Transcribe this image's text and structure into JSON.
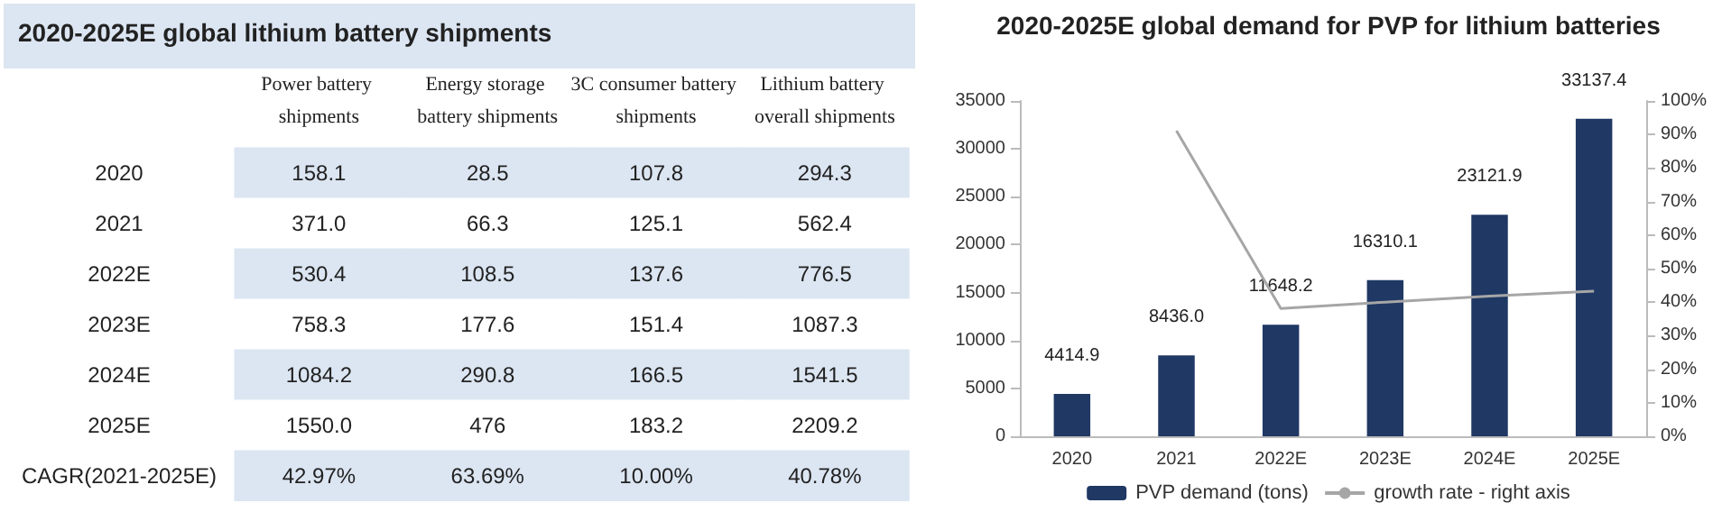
{
  "chart_data": [
    {
      "type": "heatmap",
      "title": "2020-2025E global lithium battery shipments",
      "categories": [
        "Power battery shipments",
        "Energy storage battery shipments",
        "3C consumer battery shipments",
        "Lithium battery overall shipments"
      ],
      "y_categories": [
        "2020",
        "2021",
        "2022E",
        "2023E",
        "2024E",
        "2025E",
        "CAGR(2021-2025E)"
      ],
      "cells": [
        [
          158.1,
          28.5,
          107.8,
          294.3
        ],
        [
          371.0,
          66.3,
          125.1,
          562.4
        ],
        [
          530.4,
          108.5,
          137.6,
          776.5
        ],
        [
          758.3,
          177.6,
          151.4,
          1087.3
        ],
        [
          1084.2,
          290.8,
          166.5,
          1541.5
        ],
        [
          1550.0,
          476,
          183.2,
          2209.2
        ],
        [
          42.97,
          63.69,
          10.0,
          40.78
        ]
      ],
      "cell_labels": [
        [
          "158.1",
          "28.5",
          "107.8",
          "294.3"
        ],
        [
          "371.0",
          "66.3",
          "125.1",
          "562.4"
        ],
        [
          "530.4",
          "108.5",
          "137.6",
          "776.5"
        ],
        [
          "758.3",
          "177.6",
          "151.4",
          "1087.3"
        ],
        [
          "1084.2",
          "290.8",
          "166.5",
          "1541.5"
        ],
        [
          "1550.0",
          "476",
          "183.2",
          "2209.2"
        ],
        [
          "42.97%",
          "63.69%",
          "10.00%",
          "40.78%"
        ]
      ]
    },
    {
      "type": "bar",
      "title": "2020-2025E global demand for PVP for lithium batteries",
      "categories": [
        "2020",
        "2021",
        "2022E",
        "2023E",
        "2024E",
        "2025E"
      ],
      "series": [
        {
          "name": "PVP demand (tons)",
          "type": "bar",
          "color": "#1f3864",
          "values": [
            4414.9,
            8436.0,
            11648.2,
            16310.1,
            23121.9,
            33137.4
          ],
          "value_labels": [
            "4414.9",
            "8436.0",
            "11648.2",
            "16310.1",
            "23121.9",
            "33137.4"
          ]
        },
        {
          "name": "growth rate - right axis",
          "type": "line",
          "axis": "y2",
          "color": "#a6a6a6",
          "values": [
            null,
            91.1,
            38.1,
            40.0,
            41.8,
            43.3
          ]
        }
      ],
      "ylim": [
        0,
        35000
      ],
      "yticks": [
        0,
        5000,
        10000,
        15000,
        20000,
        25000,
        30000,
        35000
      ],
      "y2lim": [
        0,
        100
      ],
      "y2ticks": [
        {
          "value": 0,
          "label": "0%"
        },
        {
          "value": 10,
          "label": "10%"
        },
        {
          "value": 20,
          "label": "20%"
        },
        {
          "value": 30,
          "label": "30%"
        },
        {
          "value": 40,
          "label": "40%"
        },
        {
          "value": 50,
          "label": "50%"
        },
        {
          "value": 60,
          "label": "60%"
        },
        {
          "value": 70,
          "label": "70%"
        },
        {
          "value": 80,
          "label": "80%"
        },
        {
          "value": 90,
          "label": "90%"
        },
        {
          "value": 100,
          "label": "100%"
        }
      ],
      "marker": "none",
      "legend": "bottom"
    }
  ]
}
